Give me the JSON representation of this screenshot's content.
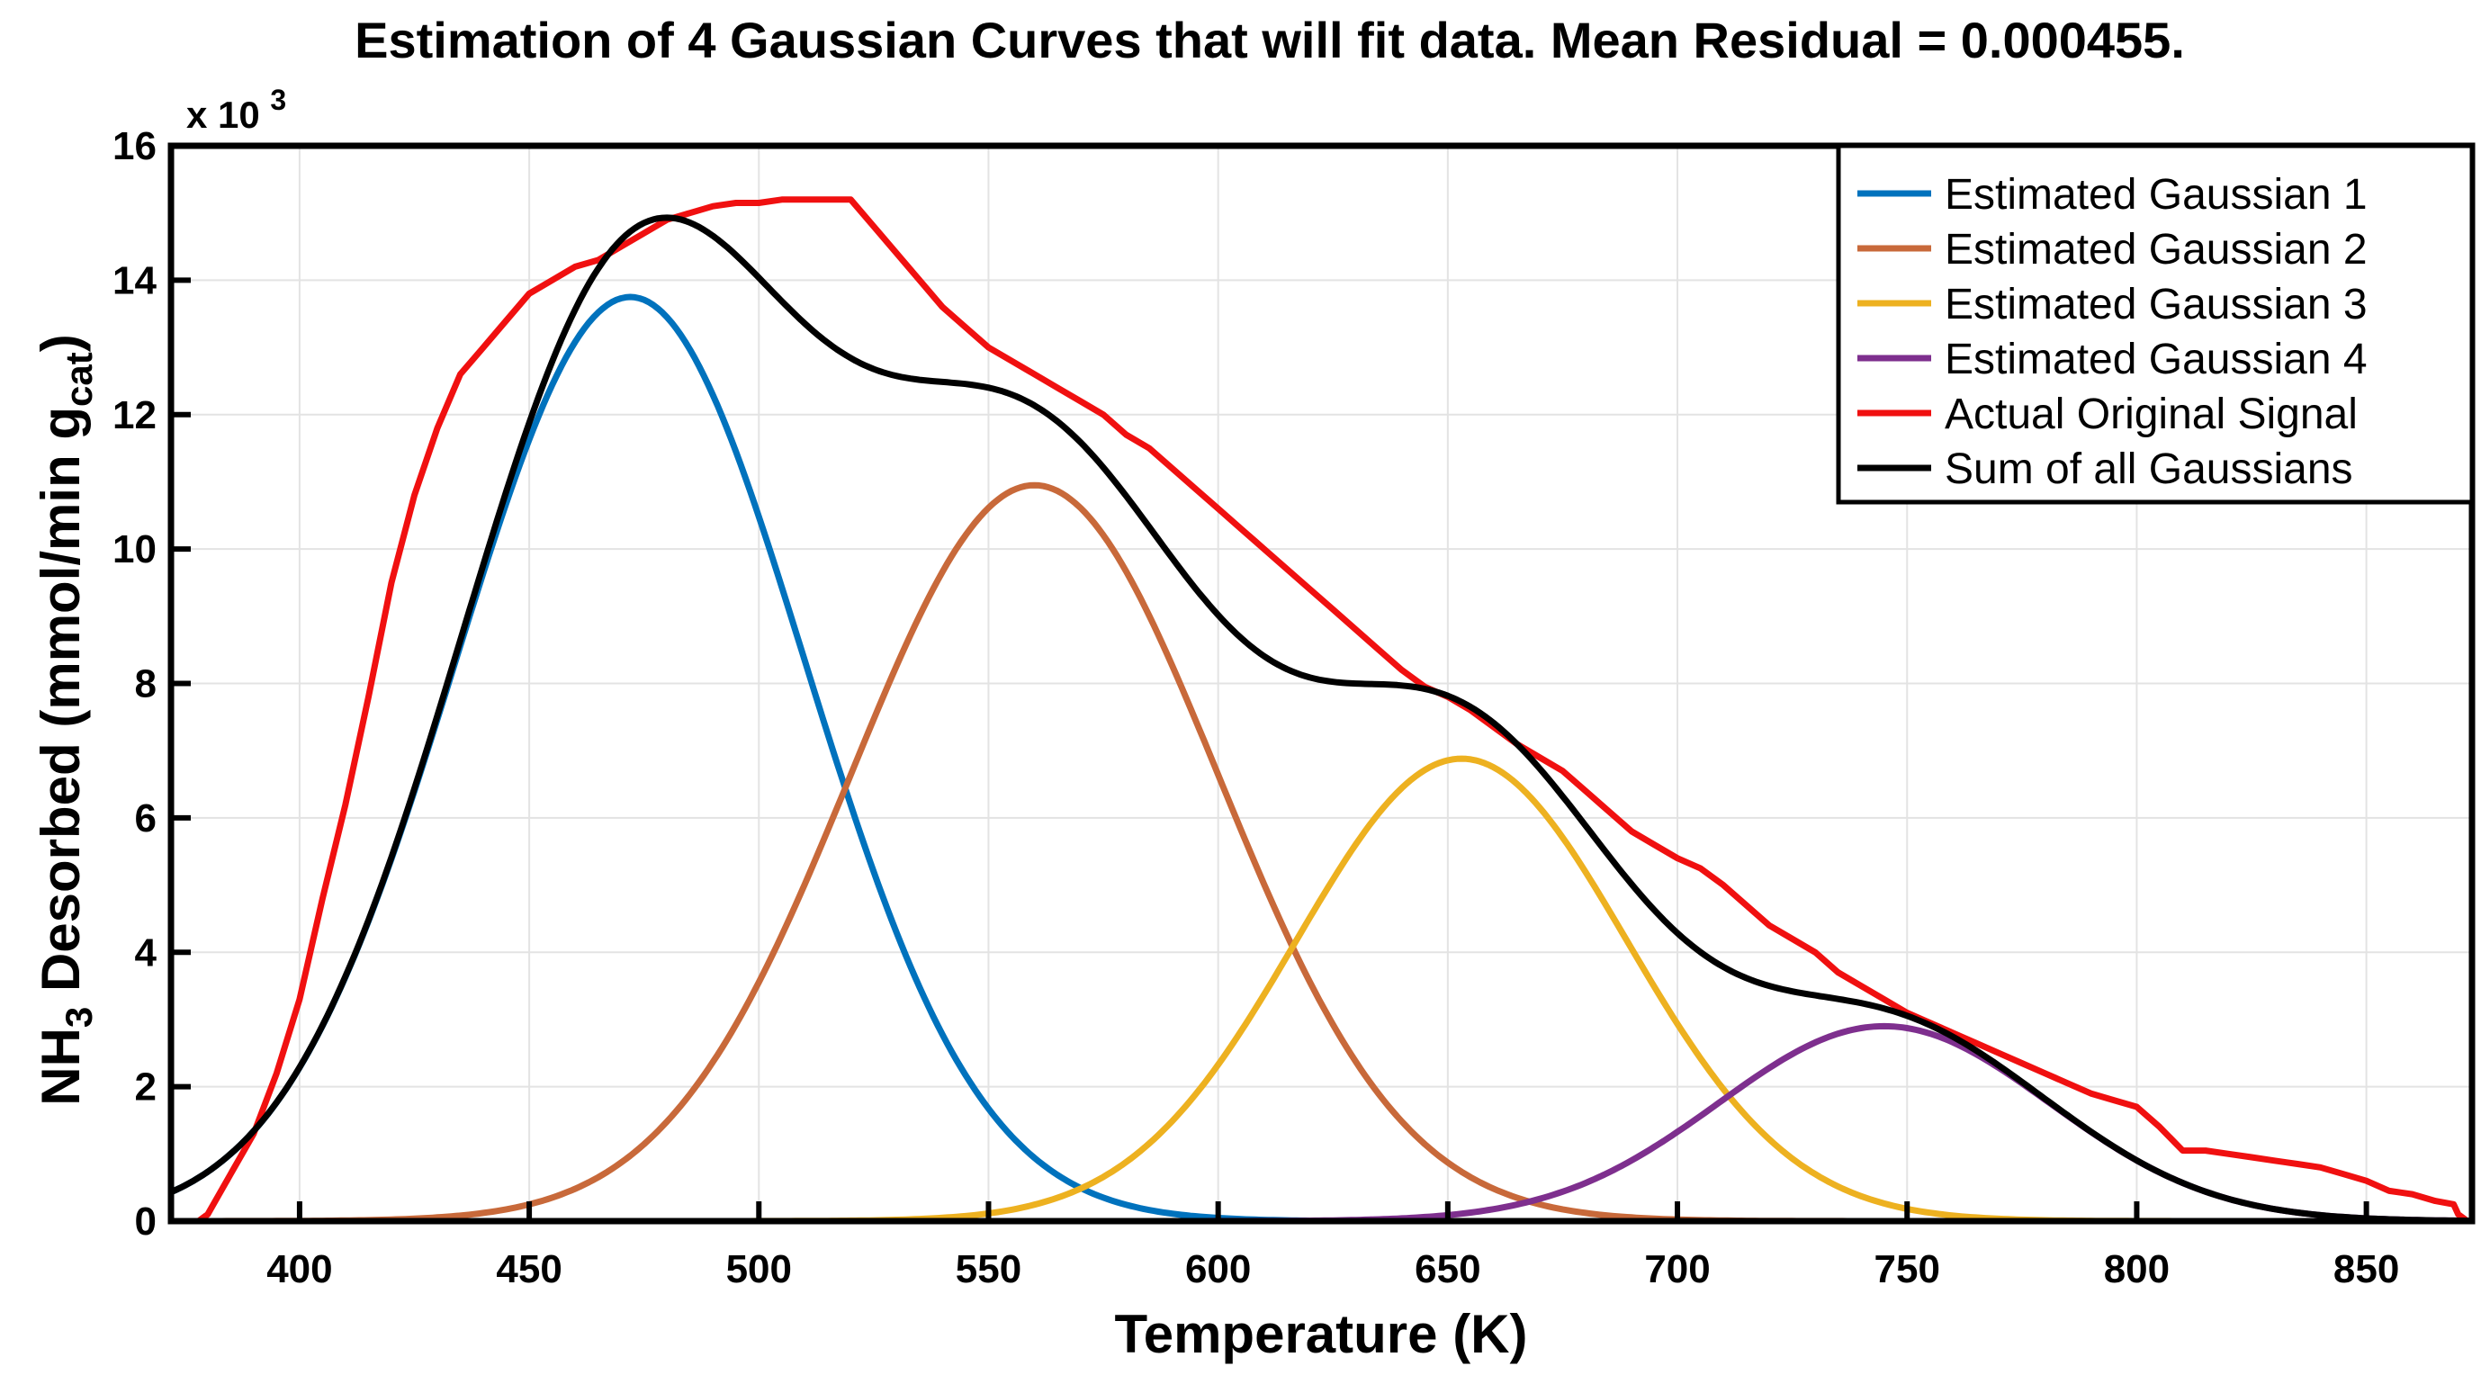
{
  "chart_data": {
    "type": "line",
    "title": "Estimation of 4 Gaussian Curves that will fit data. Mean Residual = 0.000455.",
    "xlabel": "Temperature (K)",
    "ylabel_parts": [
      "NH",
      "3",
      " Desorbed (mmol/min g",
      "cat",
      ")"
    ],
    "y_multiplier": "x 10",
    "y_multiplier_exp": "3",
    "xlim": [
      372,
      873
    ],
    "ylim": [
      0,
      16
    ],
    "xticks": [
      400,
      450,
      500,
      550,
      600,
      650,
      700,
      750,
      800,
      850
    ],
    "xtick_labels": [
      "400",
      "450",
      "500",
      "550",
      "600",
      "650",
      "700",
      "750",
      "800",
      "850"
    ],
    "yticks": [
      0,
      2,
      4,
      6,
      8,
      10,
      12,
      14,
      16
    ],
    "ytick_labels": [
      "0",
      "2",
      "4",
      "6",
      "8",
      "10",
      "12",
      "14",
      "16"
    ],
    "grid": true,
    "legend_position": "top-right",
    "series": [
      {
        "name": "Estimated Gaussian 1",
        "color": "#0072BD",
        "kind": "gaussian",
        "amplitude": 13.75,
        "center": 472,
        "sigma": 38
      },
      {
        "name": "Estimated Gaussian 2",
        "color": "#C8693A",
        "kind": "gaussian",
        "amplitude": 10.95,
        "center": 560,
        "sigma": 40
      },
      {
        "name": "Estimated Gaussian 3",
        "color": "#EDB120",
        "kind": "gaussian",
        "amplitude": 6.88,
        "center": 653,
        "sigma": 36
      },
      {
        "name": "Estimated Gaussian 4",
        "color": "#7E2F8E",
        "kind": "gaussian",
        "amplitude": 2.9,
        "center": 745,
        "sigma": 36
      },
      {
        "name": "Actual Original Signal",
        "color": "#F01010",
        "kind": "points",
        "x": [
          378,
          380,
          385,
          390,
          395,
          400,
          405,
          410,
          415,
          420,
          425,
          430,
          435,
          440,
          445,
          450,
          455,
          460,
          465,
          470,
          475,
          480,
          485,
          490,
          495,
          500,
          505,
          510,
          515,
          520,
          525,
          530,
          535,
          540,
          545,
          550,
          555,
          560,
          565,
          570,
          575,
          580,
          585,
          590,
          595,
          600,
          605,
          610,
          615,
          620,
          625,
          630,
          635,
          640,
          645,
          650,
          655,
          660,
          665,
          670,
          675,
          680,
          685,
          690,
          695,
          700,
          705,
          710,
          715,
          720,
          725,
          730,
          735,
          740,
          745,
          750,
          755,
          760,
          765,
          770,
          775,
          780,
          785,
          790,
          795,
          800,
          805,
          810,
          815,
          820,
          825,
          830,
          835,
          840,
          845,
          850,
          855,
          860,
          865,
          869,
          870,
          872
        ],
        "y": [
          0.0,
          0.1,
          0.7,
          1.3,
          2.2,
          3.3,
          4.8,
          6.2,
          7.8,
          9.5,
          10.8,
          11.8,
          12.6,
          13.0,
          13.4,
          13.8,
          14.0,
          14.2,
          14.3,
          14.5,
          14.7,
          14.9,
          15.0,
          15.1,
          15.15,
          15.15,
          15.2,
          15.2,
          15.2,
          15.2,
          14.8,
          14.4,
          14.0,
          13.6,
          13.3,
          13.0,
          12.8,
          12.6,
          12.4,
          12.2,
          12.0,
          11.7,
          11.5,
          11.2,
          10.9,
          10.6,
          10.3,
          10.0,
          9.7,
          9.4,
          9.1,
          8.8,
          8.5,
          8.2,
          7.95,
          7.8,
          7.6,
          7.35,
          7.1,
          6.9,
          6.7,
          6.4,
          6.1,
          5.8,
          5.6,
          5.4,
          5.25,
          5.0,
          4.7,
          4.4,
          4.2,
          4.0,
          3.7,
          3.5,
          3.3,
          3.1,
          2.95,
          2.8,
          2.65,
          2.5,
          2.35,
          2.2,
          2.05,
          1.9,
          1.8,
          1.7,
          1.4,
          1.05,
          1.05,
          1.0,
          0.95,
          0.9,
          0.85,
          0.8,
          0.7,
          0.6,
          0.45,
          0.4,
          0.3,
          0.25,
          0.1,
          0.0
        ]
      },
      {
        "name": "Sum of all Gaussians",
        "color": "#000000",
        "kind": "sum"
      }
    ]
  }
}
